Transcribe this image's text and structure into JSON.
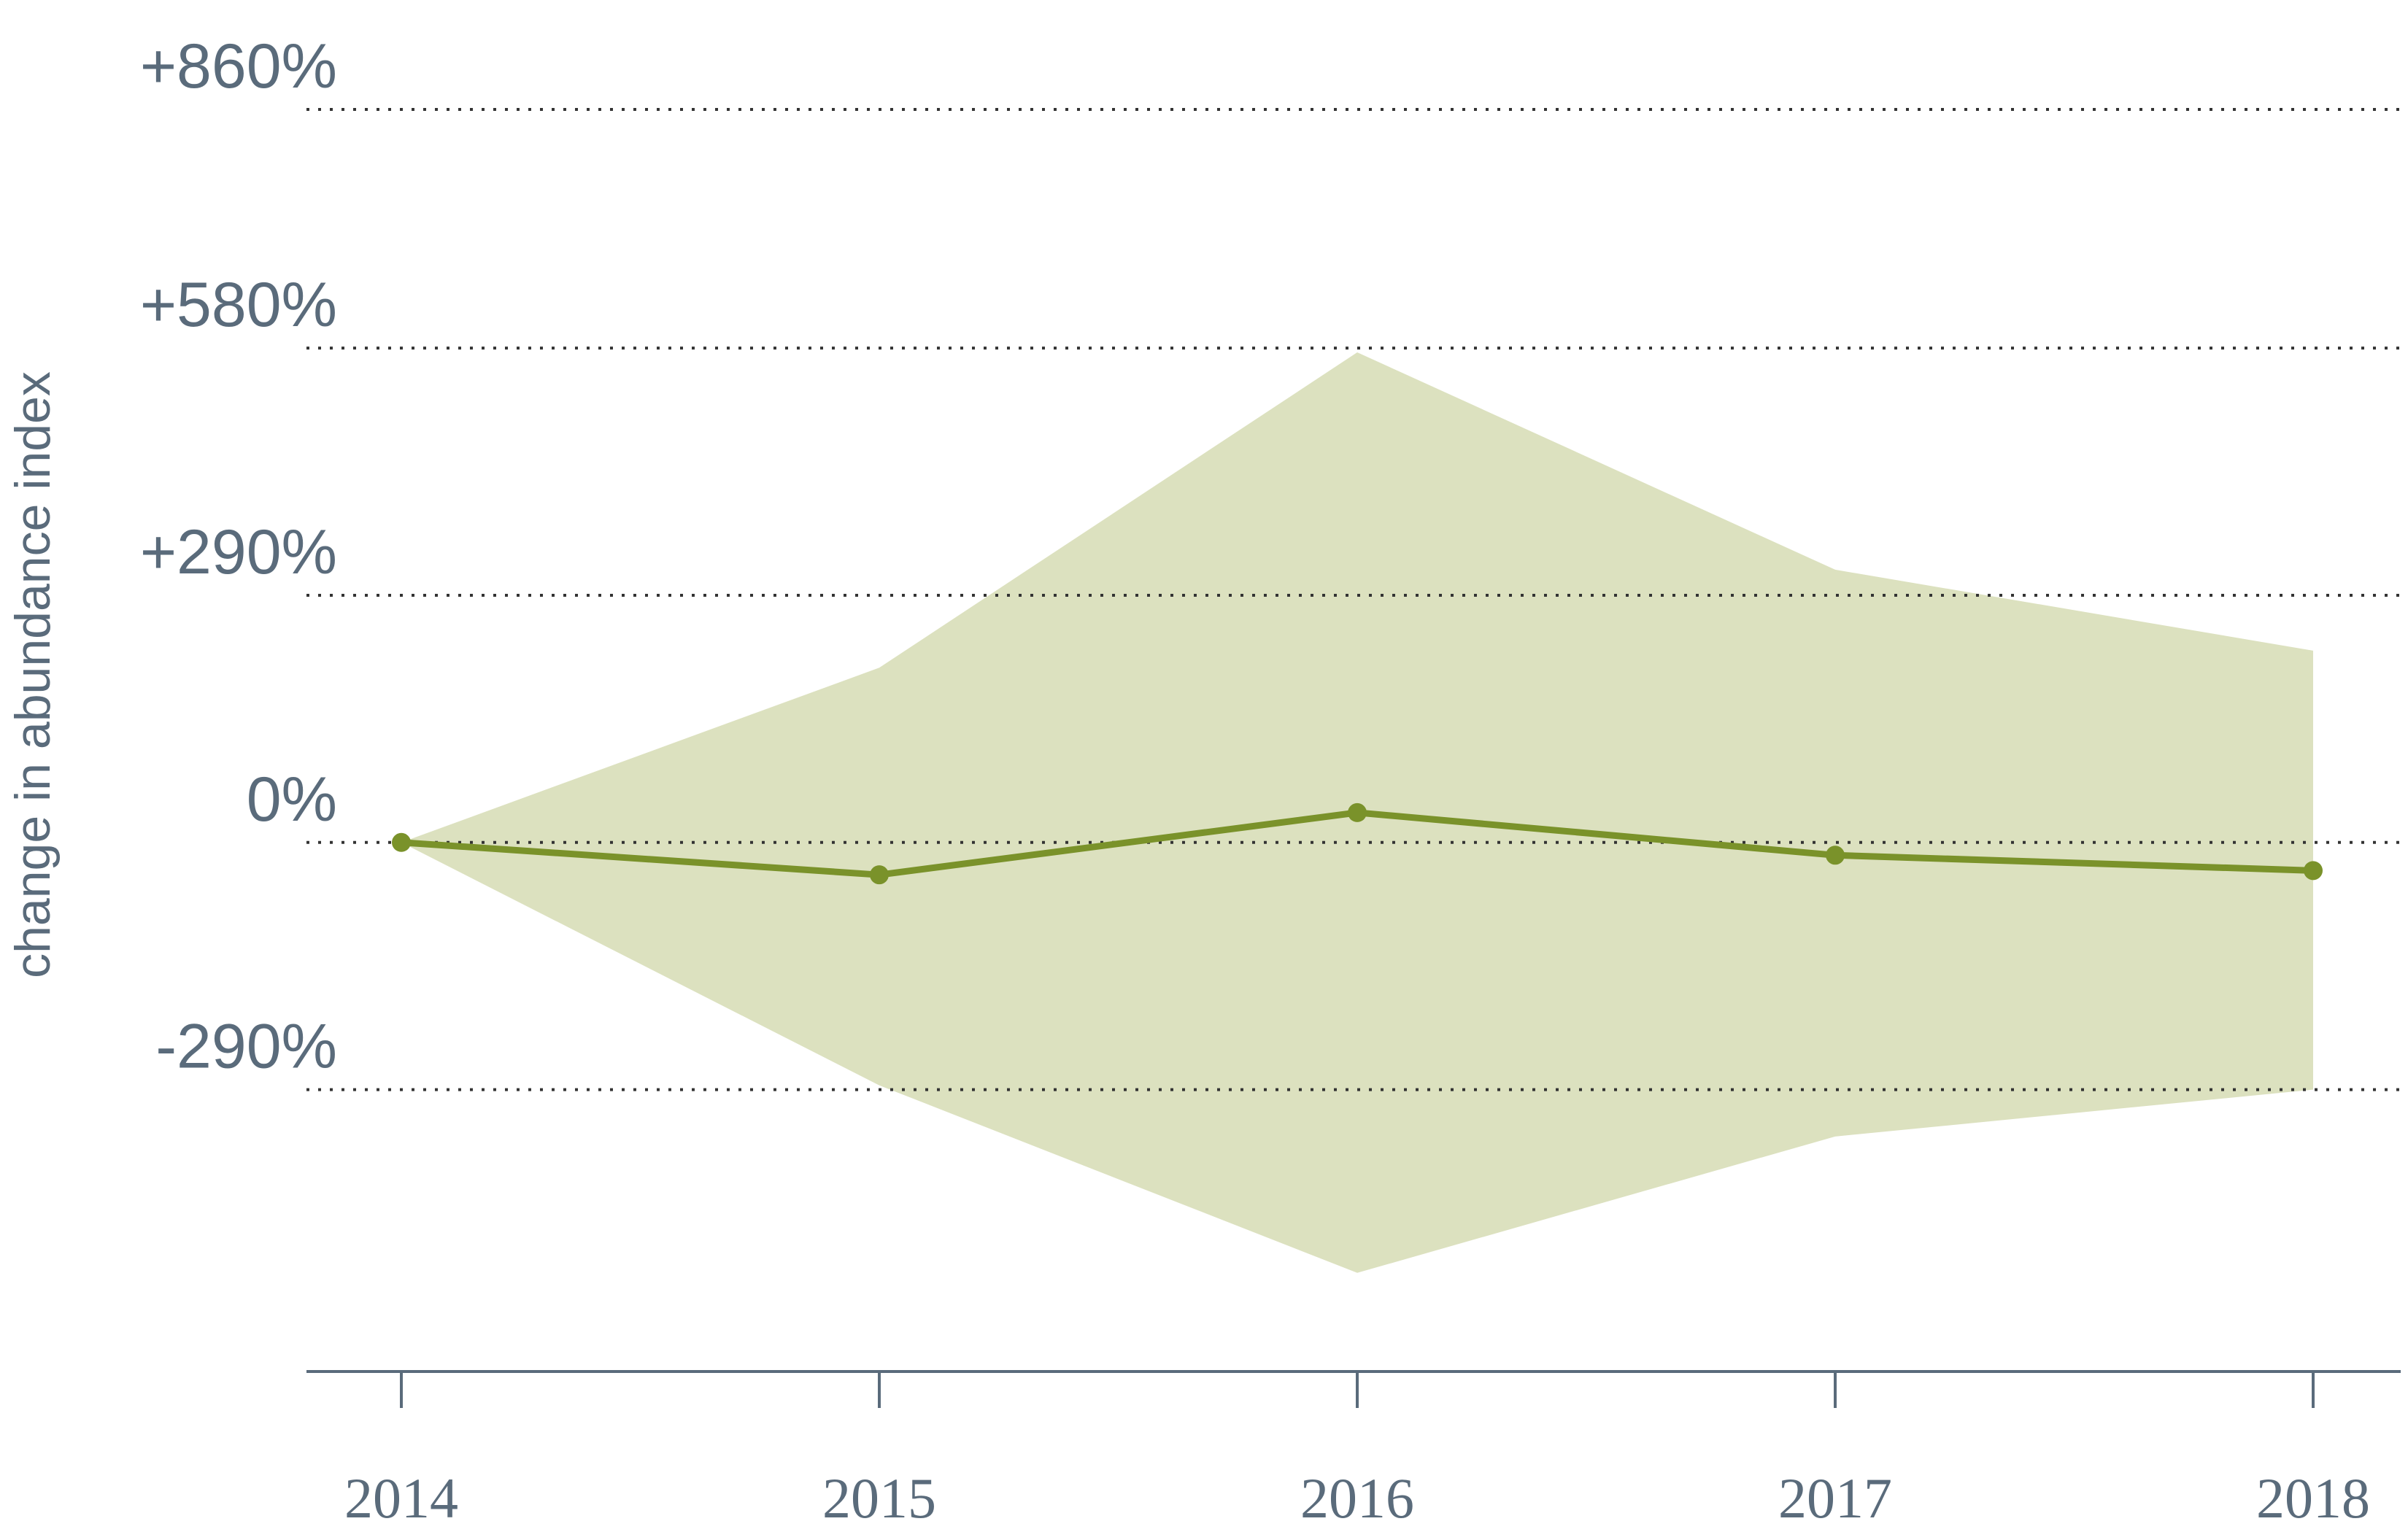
{
  "chart_data": {
    "type": "line",
    "title": "",
    "xlabel": "",
    "ylabel": "change in abundance index",
    "x": [
      2014,
      2015,
      2016,
      2017,
      2018
    ],
    "x_tick_labels": [
      "2014",
      "2015",
      "2016",
      "2017",
      "2018"
    ],
    "y_ticks": [
      -290,
      0,
      290,
      580,
      860
    ],
    "y_tick_labels": [
      "-290%",
      "0%",
      "+290%",
      "+580%",
      "+860%"
    ],
    "ylim": [
      -625,
      860
    ],
    "grid": true,
    "series": [
      {
        "values": [
          0,
          -38,
          35,
          -15,
          -33
        ]
      }
    ],
    "confidence_band": {
      "upper": [
        0,
        205,
        575,
        320,
        225
      ],
      "lower": [
        0,
        -285,
        -505,
        -345,
        -290
      ]
    },
    "colors": {
      "line": "#7a922a",
      "band": "#dce1bf",
      "text": "#5a6b7b",
      "axis": "#5a6b7b"
    }
  }
}
